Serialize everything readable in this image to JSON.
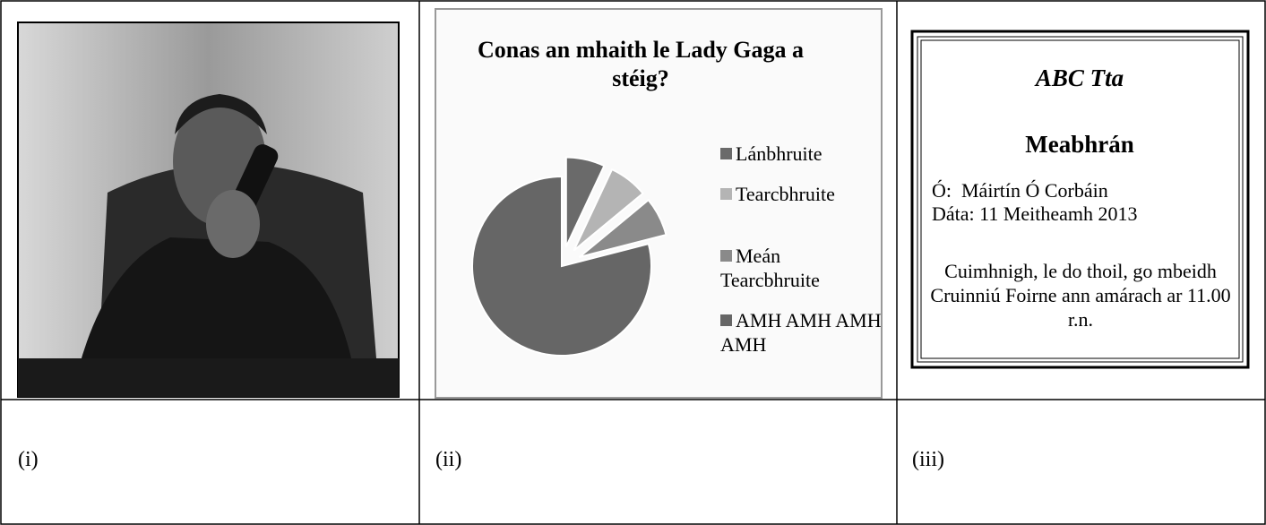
{
  "chart": {
    "type": "pie",
    "title": "Conas an mhaith le Lady Gaga a stéig?",
    "categories": [
      "Lánbhruite",
      "Tearcbhruite",
      "Meán Tearcbhruite",
      "AMH AMH AMH AMH"
    ],
    "values": [
      7,
      7,
      7,
      79
    ],
    "colors": [
      "#6a6a6a",
      "#b4b4b4",
      "#8a8a8a",
      "#666666"
    ]
  },
  "memo": {
    "company": "ABC Tta",
    "heading": "Meabhrán",
    "from": "Ó:  Máirtín Ó Corbáin",
    "date": "Dáta: 11 Meitheamh 2013",
    "body": "Cuimhnigh, le do thoil, go mbeidh Cruinniú Foirne ann amárach ar 11.00 r.n."
  },
  "captions": [
    "(i)",
    "(ii)",
    "(iii)"
  ]
}
